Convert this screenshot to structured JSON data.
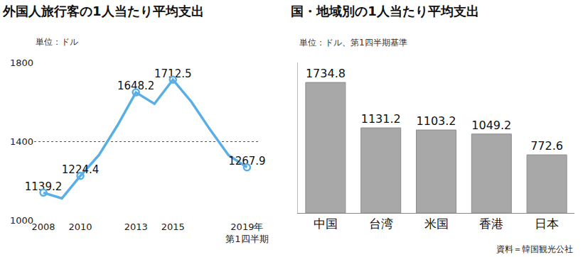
{
  "chart_data": [
    {
      "type": "line",
      "title": "外国人旅行客の1人当たり平均支出",
      "subtitle": "単位：ドル",
      "categories": [
        "2008",
        null,
        "2010",
        null,
        null,
        "2013",
        null,
        "2015",
        null,
        null,
        null,
        "2019年\n第1四半期"
      ],
      "values": [
        1139.2,
        1110,
        1224.4,
        1330,
        1480,
        1648.2,
        1590,
        1712.5,
        1600,
        1460,
        1330,
        1267.9
      ],
      "value_labels": [
        "1139.2",
        null,
        "1224.4",
        null,
        null,
        "1648.2",
        null,
        "1712.5",
        null,
        null,
        null,
        "1267.9"
      ],
      "data_labels": true,
      "color": "#5aaee6",
      "marker": "circle",
      "ylim": [
        1000,
        1800
      ],
      "yticks": [
        1000,
        1400,
        1800
      ],
      "grid": true
    },
    {
      "type": "bar",
      "title": "国・地域別の1人当たり平均支出",
      "subtitle": "単位：ドル、第1四半期基準",
      "categories": [
        "中国",
        "台湾",
        "米国",
        "香港",
        "日本"
      ],
      "values": [
        1734.8,
        1131.2,
        1103.2,
        1049.2,
        772.6
      ],
      "data_labels": true,
      "color": "#a8a8a8",
      "ylim": [
        0,
        2000
      ],
      "tick_labels": "x",
      "source": "資料＝韓国観光公社"
    }
  ]
}
